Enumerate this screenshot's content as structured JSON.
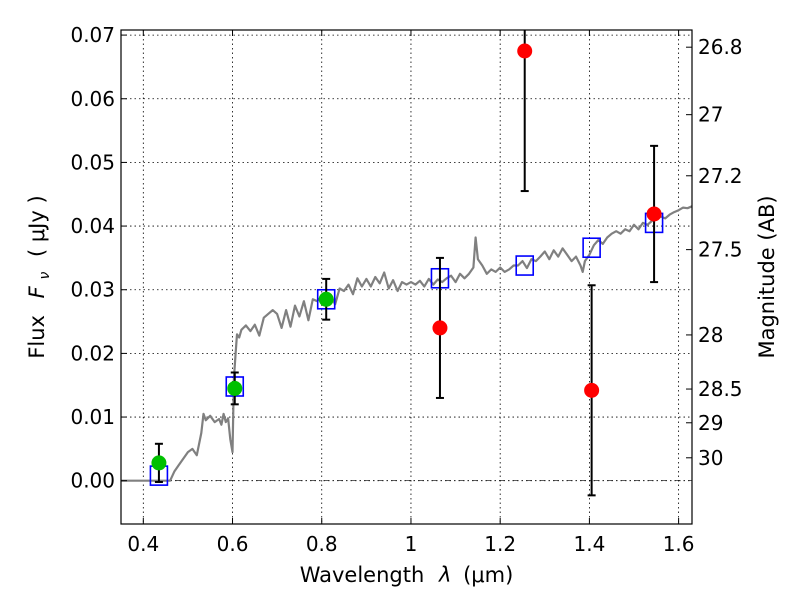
{
  "chart_data": {
    "type": "scatter",
    "xlabel_prefix": "Wavelength",
    "xlabel_symbol": "λ",
    "xlabel_unit": "(μm)",
    "ylabel_prefix": "Flux",
    "ylabel_symbol": "F",
    "ylabel_sub": "ν",
    "ylabel_unit": "( μJy )",
    "y2label": "Magnitude (AB)",
    "xlim": [
      0.35,
      1.63
    ],
    "ylim": [
      -0.0068,
      0.0708
    ],
    "grid": true,
    "x_ticks": [
      {
        "v": 0.4,
        "label": "0.4"
      },
      {
        "v": 0.6,
        "label": "0.6"
      },
      {
        "v": 0.8,
        "label": "0.8"
      },
      {
        "v": 1.0,
        "label": "1"
      },
      {
        "v": 1.2,
        "label": "1.2"
      },
      {
        "v": 1.4,
        "label": "1.4"
      },
      {
        "v": 1.6,
        "label": "1.6"
      }
    ],
    "y_ticks": [
      {
        "v": 0.0,
        "label": "0.00"
      },
      {
        "v": 0.01,
        "label": "0.01"
      },
      {
        "v": 0.02,
        "label": "0.02"
      },
      {
        "v": 0.03,
        "label": "0.03"
      },
      {
        "v": 0.04,
        "label": "0.04"
      },
      {
        "v": 0.05,
        "label": "0.05"
      },
      {
        "v": 0.06,
        "label": "0.06"
      },
      {
        "v": 0.07,
        "label": "0.07"
      }
    ],
    "y2_ticks": [
      {
        "label": "26.8",
        "flux": 0.0681
      },
      {
        "label": "27",
        "flux": 0.0575
      },
      {
        "label": "27.2",
        "flux": 0.0479
      },
      {
        "label": "27.5",
        "flux": 0.0363
      },
      {
        "label": "28",
        "flux": 0.0229
      },
      {
        "label": "28.5",
        "flux": 0.0144
      },
      {
        "label": "29",
        "flux": 0.0091
      },
      {
        "label": "30",
        "flux": 0.0036
      }
    ],
    "series": [
      {
        "kind": "line",
        "color": "#808080",
        "points": [
          [
            0.35,
            0.0
          ],
          [
            0.46,
            0.0
          ],
          [
            0.47,
            0.0015
          ],
          [
            0.48,
            0.0025
          ],
          [
            0.49,
            0.0035
          ],
          [
            0.5,
            0.0045
          ],
          [
            0.51,
            0.005
          ],
          [
            0.52,
            0.004
          ],
          [
            0.53,
            0.0075
          ],
          [
            0.535,
            0.0105
          ],
          [
            0.54,
            0.0095
          ],
          [
            0.55,
            0.0102
          ],
          [
            0.56,
            0.0092
          ],
          [
            0.57,
            0.0097
          ],
          [
            0.575,
            0.0088
          ],
          [
            0.58,
            0.0105
          ],
          [
            0.585,
            0.0092
          ],
          [
            0.59,
            0.0098
          ],
          [
            0.595,
            0.0065
          ],
          [
            0.6,
            0.0045
          ],
          [
            0.603,
            0.016
          ],
          [
            0.607,
            0.02
          ],
          [
            0.61,
            0.023
          ],
          [
            0.615,
            0.0225
          ],
          [
            0.62,
            0.0237
          ],
          [
            0.63,
            0.0244
          ],
          [
            0.64,
            0.0235
          ],
          [
            0.65,
            0.0245
          ],
          [
            0.66,
            0.0228
          ],
          [
            0.67,
            0.0256
          ],
          [
            0.68,
            0.0262
          ],
          [
            0.69,
            0.0268
          ],
          [
            0.7,
            0.0262
          ],
          [
            0.71,
            0.024
          ],
          [
            0.72,
            0.0268
          ],
          [
            0.73,
            0.0242
          ],
          [
            0.74,
            0.0275
          ],
          [
            0.75,
            0.0258
          ],
          [
            0.76,
            0.0282
          ],
          [
            0.77,
            0.0252
          ],
          [
            0.78,
            0.0285
          ],
          [
            0.79,
            0.0282
          ],
          [
            0.8,
            0.029
          ],
          [
            0.81,
            0.0283
          ],
          [
            0.82,
            0.0292
          ],
          [
            0.83,
            0.0277
          ],
          [
            0.84,
            0.0302
          ],
          [
            0.85,
            0.0298
          ],
          [
            0.86,
            0.0308
          ],
          [
            0.87,
            0.0293
          ],
          [
            0.88,
            0.0318
          ],
          [
            0.89,
            0.0305
          ],
          [
            0.9,
            0.0317
          ],
          [
            0.91,
            0.0305
          ],
          [
            0.92,
            0.032
          ],
          [
            0.93,
            0.031
          ],
          [
            0.94,
            0.0327
          ],
          [
            0.95,
            0.0302
          ],
          [
            0.96,
            0.0315
          ],
          [
            0.97,
            0.0298
          ],
          [
            0.98,
            0.0312
          ],
          [
            0.99,
            0.0308
          ],
          [
            1.0,
            0.0312
          ],
          [
            1.01,
            0.0308
          ],
          [
            1.02,
            0.0314
          ],
          [
            1.03,
            0.0305
          ],
          [
            1.04,
            0.0317
          ],
          [
            1.05,
            0.0308
          ],
          [
            1.06,
            0.0316
          ],
          [
            1.07,
            0.0312
          ],
          [
            1.08,
            0.0318
          ],
          [
            1.09,
            0.0322
          ],
          [
            1.1,
            0.0312
          ],
          [
            1.11,
            0.0325
          ],
          [
            1.12,
            0.0318
          ],
          [
            1.13,
            0.0325
          ],
          [
            1.14,
            0.0335
          ],
          [
            1.145,
            0.0382
          ],
          [
            1.15,
            0.0348
          ],
          [
            1.16,
            0.0338
          ],
          [
            1.17,
            0.0325
          ],
          [
            1.18,
            0.0332
          ],
          [
            1.19,
            0.0328
          ],
          [
            1.2,
            0.0335
          ],
          [
            1.21,
            0.0328
          ],
          [
            1.22,
            0.0332
          ],
          [
            1.23,
            0.0338
          ],
          [
            1.24,
            0.0338
          ],
          [
            1.25,
            0.0345
          ],
          [
            1.26,
            0.0334
          ],
          [
            1.27,
            0.0348
          ],
          [
            1.28,
            0.0345
          ],
          [
            1.29,
            0.0352
          ],
          [
            1.3,
            0.036
          ],
          [
            1.31,
            0.0348
          ],
          [
            1.32,
            0.0362
          ],
          [
            1.33,
            0.0352
          ],
          [
            1.34,
            0.0365
          ],
          [
            1.35,
            0.0355
          ],
          [
            1.36,
            0.0345
          ],
          [
            1.37,
            0.0352
          ],
          [
            1.38,
            0.0338
          ],
          [
            1.385,
            0.0328
          ],
          [
            1.39,
            0.0345
          ],
          [
            1.4,
            0.0355
          ],
          [
            1.41,
            0.037
          ],
          [
            1.42,
            0.0378
          ],
          [
            1.43,
            0.0372
          ],
          [
            1.44,
            0.0382
          ],
          [
            1.45,
            0.0388
          ],
          [
            1.46,
            0.0392
          ],
          [
            1.47,
            0.0388
          ],
          [
            1.48,
            0.0395
          ],
          [
            1.49,
            0.0392
          ],
          [
            1.5,
            0.0402
          ],
          [
            1.51,
            0.0395
          ],
          [
            1.52,
            0.0405
          ],
          [
            1.53,
            0.0402
          ],
          [
            1.54,
            0.0408
          ],
          [
            1.55,
            0.041
          ],
          [
            1.56,
            0.0415
          ],
          [
            1.57,
            0.0412
          ],
          [
            1.58,
            0.0418
          ],
          [
            1.59,
            0.0422
          ],
          [
            1.6,
            0.0425
          ],
          [
            1.61,
            0.0429
          ],
          [
            1.62,
            0.0428
          ],
          [
            1.63,
            0.0431
          ]
        ]
      },
      {
        "kind": "open-square",
        "color": "#0000ff",
        "points": [
          [
            0.435,
            0.0008
          ],
          [
            0.605,
            0.0148
          ],
          [
            0.81,
            0.0285
          ],
          [
            1.065,
            0.0318
          ],
          [
            1.255,
            0.0338
          ],
          [
            1.405,
            0.0366
          ],
          [
            1.545,
            0.0405
          ]
        ]
      },
      {
        "kind": "filled-circle",
        "color": "#00c000",
        "points": [
          {
            "x": 0.435,
            "y": 0.0028,
            "err": 0.003
          },
          {
            "x": 0.605,
            "y": 0.0145,
            "err": 0.0025
          },
          {
            "x": 0.81,
            "y": 0.0285,
            "err": 0.0032
          }
        ]
      },
      {
        "kind": "filled-circle",
        "color": "#ff0000",
        "points": [
          {
            "x": 1.065,
            "y": 0.024,
            "err": 0.011
          },
          {
            "x": 1.255,
            "y": 0.0675,
            "err": 0.022
          },
          {
            "x": 1.405,
            "y": 0.0142,
            "err": 0.0165
          },
          {
            "x": 1.545,
            "y": 0.0419,
            "err": 0.0107
          }
        ]
      }
    ]
  }
}
